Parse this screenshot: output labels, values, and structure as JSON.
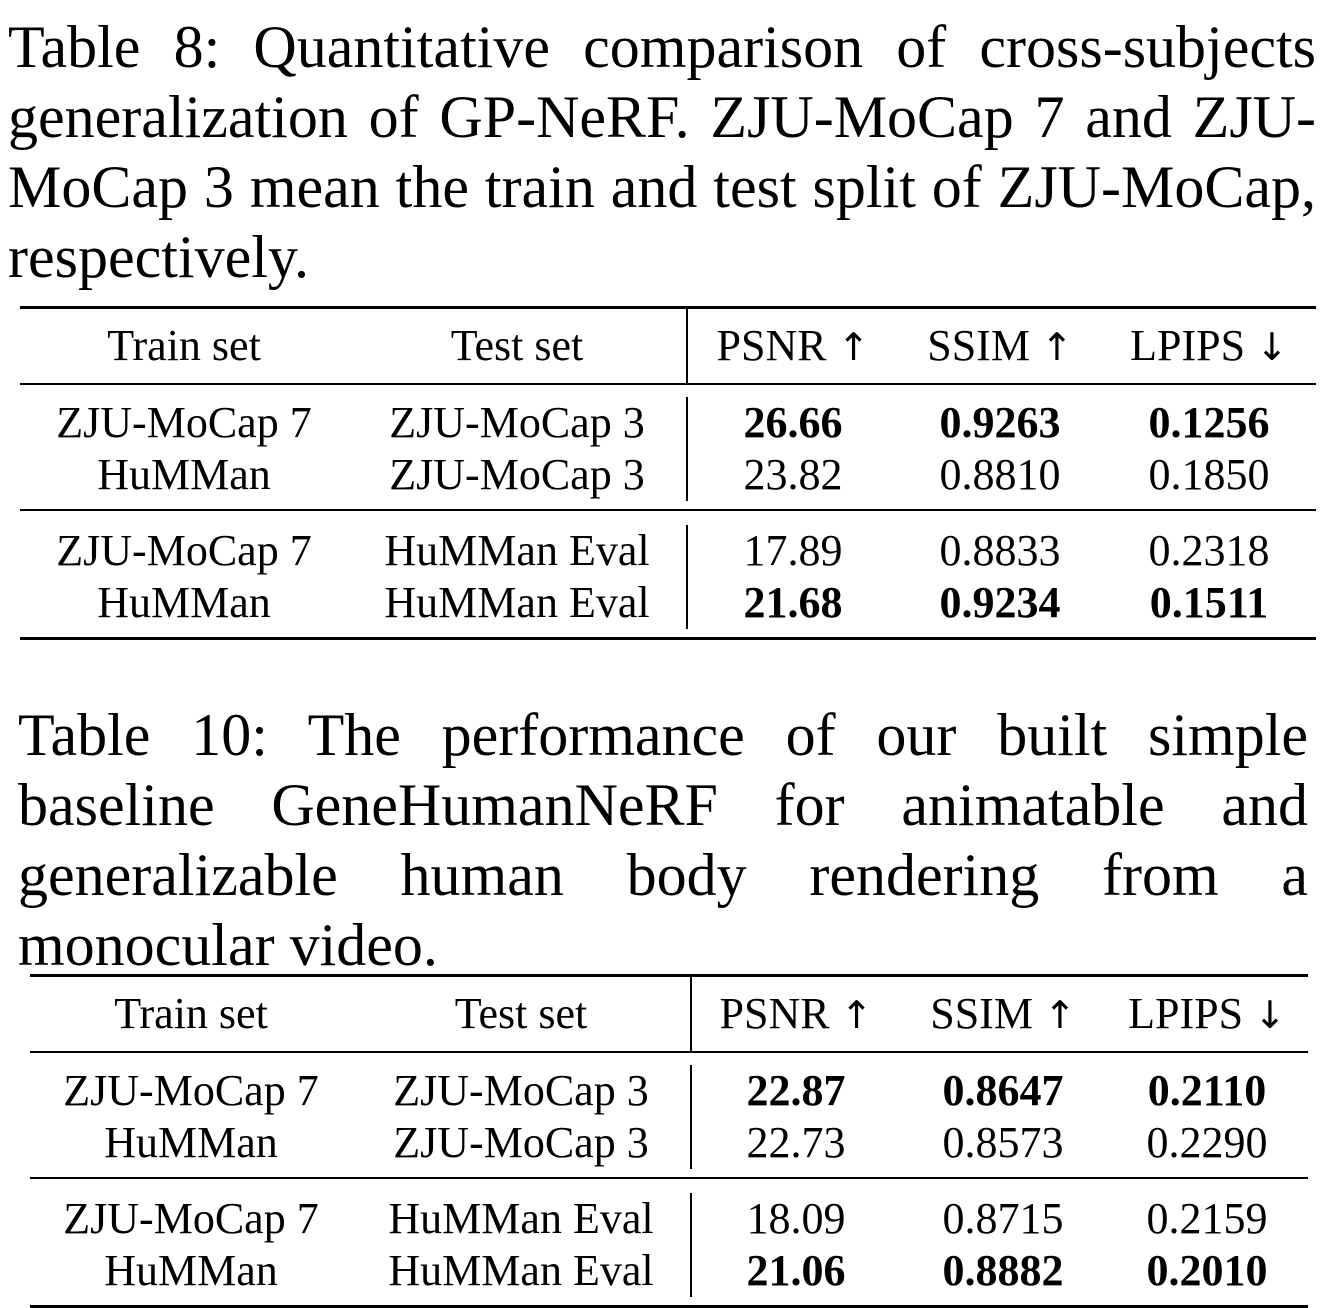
{
  "table8": {
    "caption": "Table 8: Quantitative comparison of cross-subjects generalization of GP-NeRF. ZJU-MoCap 7 and ZJU-MoCap 3 mean the train and test split of ZJU-MoCap, respectively.",
    "headers": {
      "train": "Train set",
      "test": "Test set",
      "psnr": "PSNR",
      "psnr_arrow": "↑",
      "ssim": "SSIM",
      "ssim_arrow": "↑",
      "lpips": "LPIPS",
      "lpips_arrow": "↓"
    },
    "rows": [
      {
        "train": "ZJU-MoCap 7",
        "test": "ZJU-MoCap 3",
        "psnr": "26.66",
        "ssim": "0.9263",
        "lpips": "0.1256"
      },
      {
        "train": "HuMMan",
        "test": "ZJU-MoCap 3",
        "psnr": "23.82",
        "ssim": "0.8810",
        "lpips": "0.1850"
      },
      {
        "train": "ZJU-MoCap 7",
        "test": "HuMMan Eval",
        "psnr": "17.89",
        "ssim": "0.8833",
        "lpips": "0.2318"
      },
      {
        "train": "HuMMan",
        "test": "HuMMan Eval",
        "psnr": "21.68",
        "ssim": "0.9234",
        "lpips": "0.1511"
      }
    ]
  },
  "table10": {
    "caption": "Table 10: The performance of our built simple baseline GeneHumanNeRF for animatable and generalizable human body rendering from a monocular video.",
    "headers": {
      "train": "Train set",
      "test": "Test set",
      "psnr": "PSNR",
      "psnr_arrow": "↑",
      "ssim": "SSIM",
      "ssim_arrow": "↑",
      "lpips": "LPIPS",
      "lpips_arrow": "↓"
    },
    "rows": [
      {
        "train": "ZJU-MoCap 7",
        "test": "ZJU-MoCap 3",
        "psnr": "22.87",
        "ssim": "0.8647",
        "lpips": "0.2110"
      },
      {
        "train": "HuMMan",
        "test": "ZJU-MoCap 3",
        "psnr": "22.73",
        "ssim": "0.8573",
        "lpips": "0.2290"
      },
      {
        "train": "ZJU-MoCap 7",
        "test": "HuMMan Eval",
        "psnr": "18.09",
        "ssim": "0.8715",
        "lpips": "0.2159"
      },
      {
        "train": "HuMMan",
        "test": "HuMMan Eval",
        "psnr": "21.06",
        "ssim": "0.8882",
        "lpips": "0.2010"
      }
    ]
  }
}
